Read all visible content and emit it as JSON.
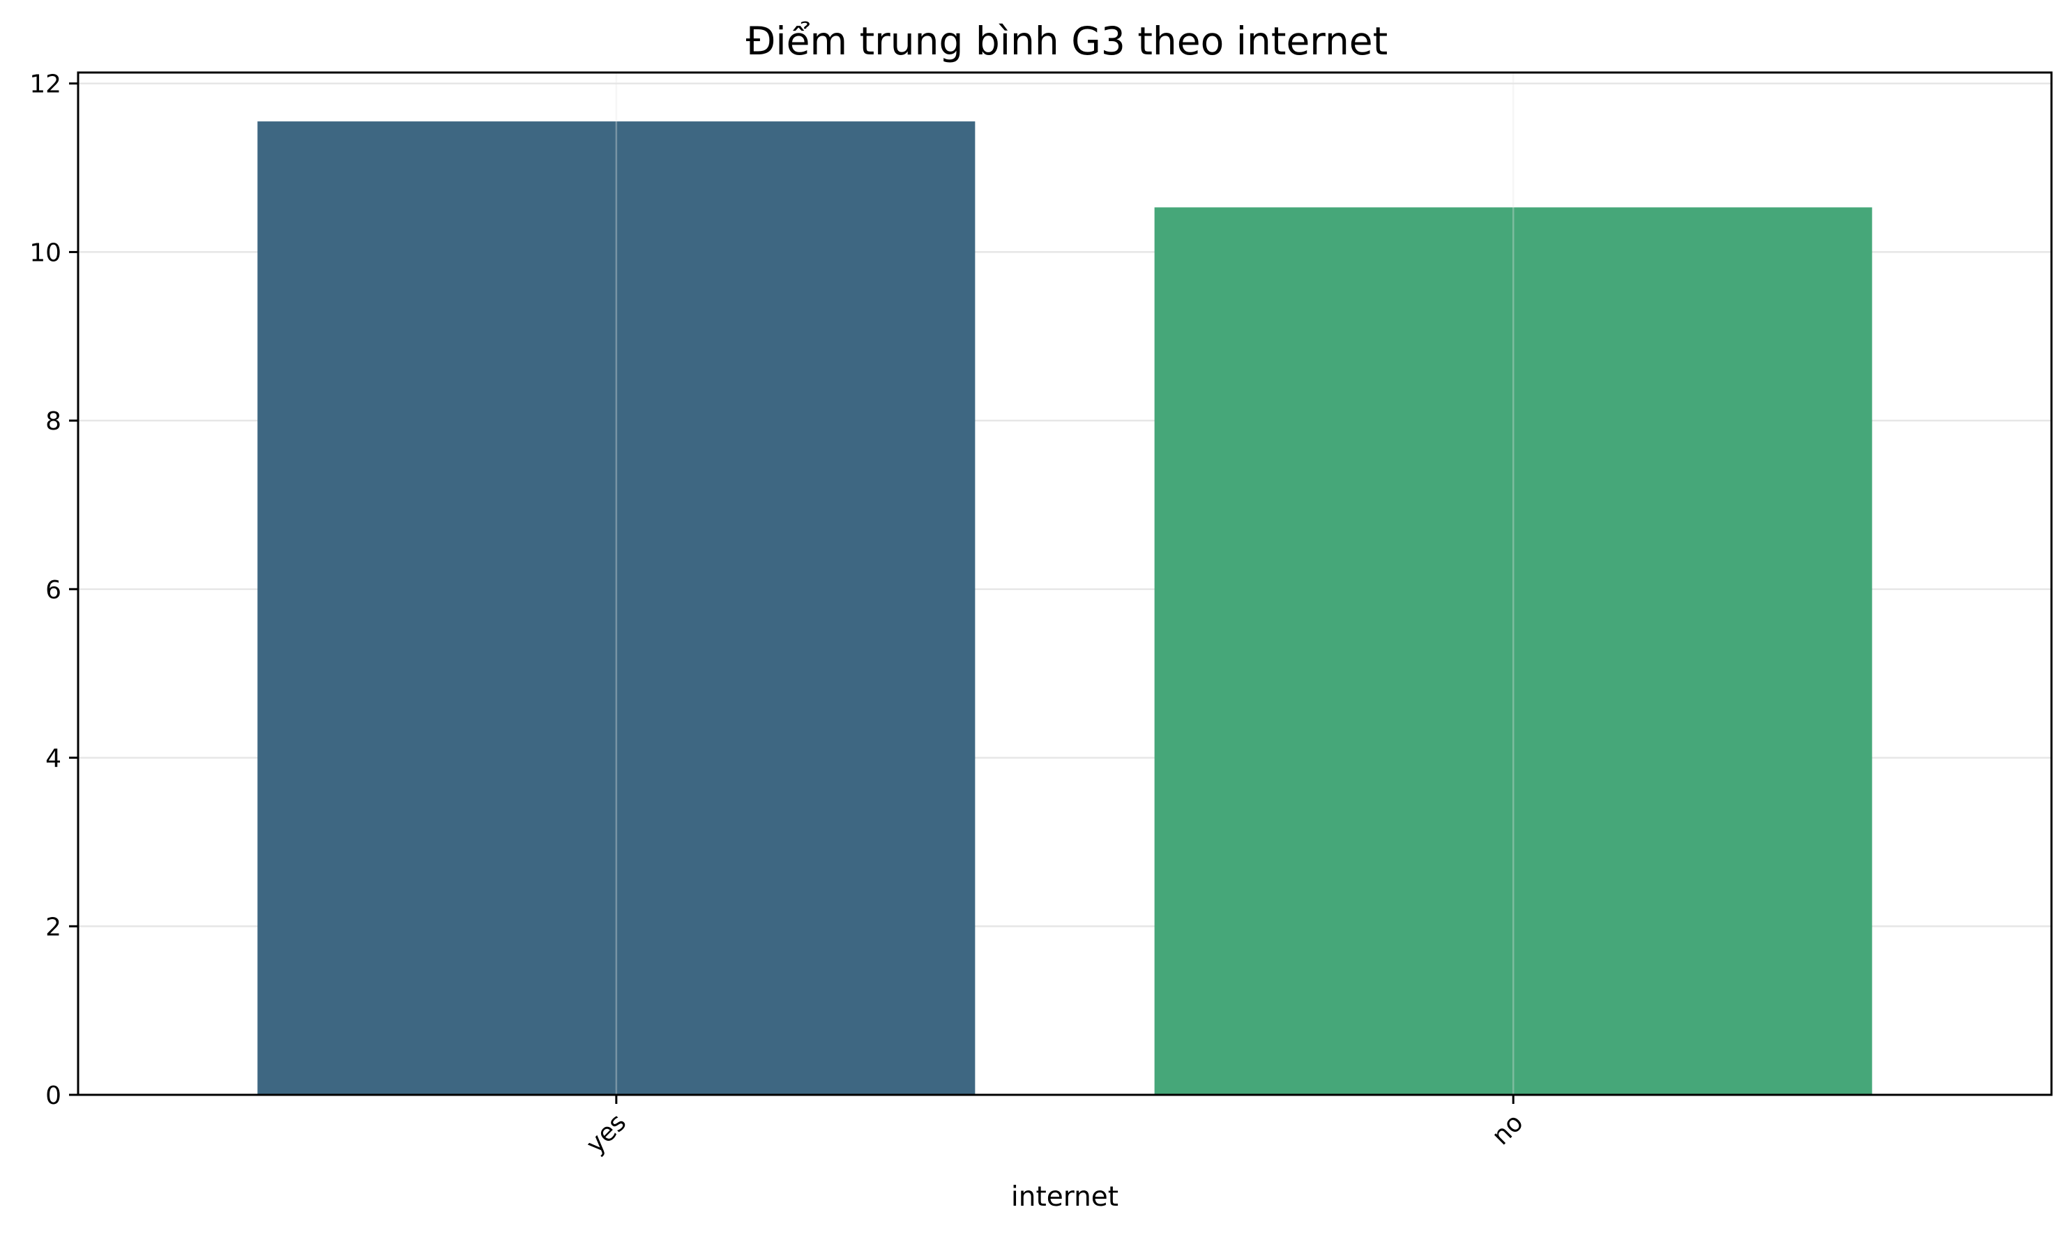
{
  "chart_data": {
    "type": "bar",
    "title": "Điểm trung bình G3 theo internet",
    "xlabel": "internet",
    "ylabel": "",
    "categories": [
      "yes",
      "no"
    ],
    "values": [
      11.55,
      10.53
    ],
    "colors": [
      "#3e6782",
      "#46a779"
    ],
    "ylim": [
      0,
      12.13
    ],
    "yticks": [
      0,
      2,
      4,
      6,
      8,
      10,
      12
    ],
    "ytick_labels": [
      "0",
      "2",
      "4",
      "6",
      "8",
      "10",
      "12"
    ],
    "grid": true,
    "xtick_rotation": "45 degrees"
  }
}
